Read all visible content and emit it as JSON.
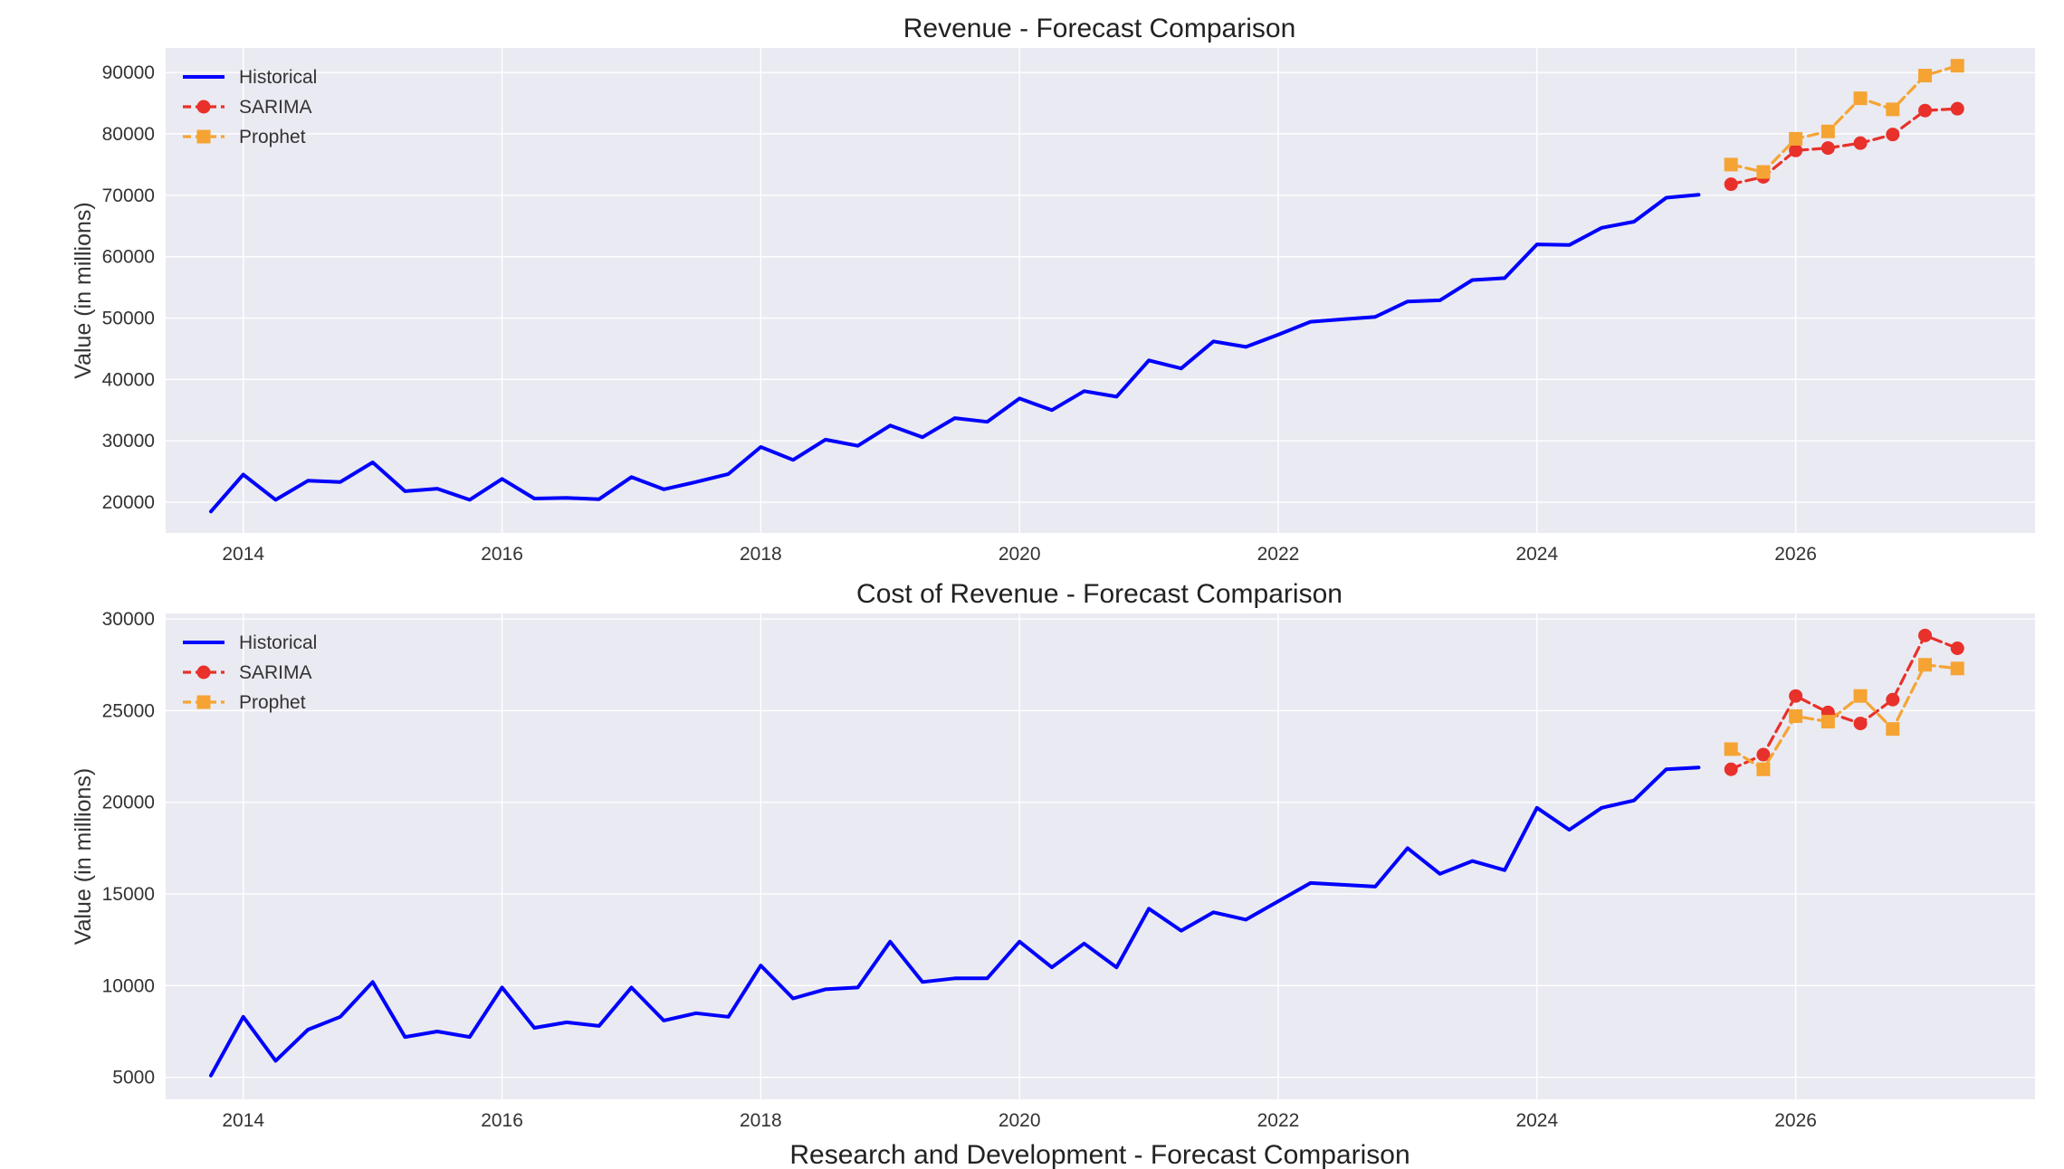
{
  "chart_data": [
    {
      "type": "line",
      "title": "Revenue - Forecast Comparison",
      "xlabel": "",
      "ylabel": "Value (in millions)",
      "xlim": [
        2013.4,
        2027.85
      ],
      "ylim": [
        15000,
        94000
      ],
      "xticks": [
        "2014",
        "2016",
        "2018",
        "2020",
        "2022",
        "2024",
        "2026"
      ],
      "yticks": [
        "20000",
        "30000",
        "40000",
        "50000",
        "60000",
        "70000",
        "80000",
        "90000"
      ],
      "grid": true,
      "legend_position": "top-left",
      "series": [
        {
          "name": "Historical",
          "color": "#0000ff",
          "style": "solid",
          "marker": "none",
          "x": [
            2013.75,
            2014.0,
            2014.25,
            2014.5,
            2014.75,
            2015.0,
            2015.25,
            2015.5,
            2015.75,
            2016.0,
            2016.25,
            2016.5,
            2016.75,
            2017.0,
            2017.25,
            2017.5,
            2017.75,
            2018.0,
            2018.25,
            2018.5,
            2018.75,
            2019.0,
            2019.25,
            2019.5,
            2019.75,
            2020.0,
            2020.25,
            2020.5,
            2020.75,
            2021.0,
            2021.25,
            2021.5,
            2021.75,
            2022.0,
            2022.25,
            2022.5,
            2022.75,
            2023.0,
            2023.25,
            2023.5,
            2023.75,
            2024.0,
            2024.25,
            2024.5,
            2024.75,
            2025.0,
            2025.25
          ],
          "y": [
            18500,
            24500,
            20400,
            23500,
            23300,
            26500,
            21800,
            22200,
            20400,
            23800,
            20600,
            20700,
            20500,
            24100,
            22100,
            23300,
            24600,
            29000,
            26900,
            30200,
            29200,
            32500,
            30600,
            33700,
            33100,
            36900,
            35000,
            38100,
            37200,
            43100,
            41800,
            46200,
            45300,
            47300,
            49400,
            49800,
            50200,
            52700,
            52900,
            56200,
            56500,
            62000,
            61900,
            64700,
            65700,
            69600,
            70100
          ]
        },
        {
          "name": "SARIMA",
          "color": "#e8312a",
          "style": "dashed",
          "marker": "circle",
          "x": [
            2025.5,
            2025.75,
            2026.0,
            2026.25,
            2026.5,
            2026.75,
            2027.0,
            2027.25
          ],
          "y": [
            71800,
            73000,
            77300,
            77700,
            78500,
            79900,
            83800,
            84100
          ]
        },
        {
          "name": "Prophet",
          "color": "#f5a433",
          "style": "dashed",
          "marker": "square",
          "x": [
            2025.5,
            2025.75,
            2026.0,
            2026.25,
            2026.5,
            2026.75,
            2027.0,
            2027.25
          ],
          "y": [
            75000,
            73800,
            79200,
            80400,
            85800,
            84000,
            89500,
            91100
          ]
        }
      ]
    },
    {
      "type": "line",
      "title": "Cost of Revenue - Forecast Comparison",
      "xlabel": "",
      "ylabel": "Value (in millions)",
      "xlim": [
        2013.4,
        2027.85
      ],
      "ylim": [
        3800,
        30300
      ],
      "xticks": [
        "2014",
        "2016",
        "2018",
        "2020",
        "2022",
        "2024",
        "2026"
      ],
      "yticks": [
        "5000",
        "10000",
        "15000",
        "20000",
        "25000",
        "30000"
      ],
      "grid": true,
      "legend_position": "top-left",
      "series": [
        {
          "name": "Historical",
          "color": "#0000ff",
          "style": "solid",
          "marker": "none",
          "x": [
            2013.75,
            2014.0,
            2014.25,
            2014.5,
            2014.75,
            2015.0,
            2015.25,
            2015.5,
            2015.75,
            2016.0,
            2016.25,
            2016.5,
            2016.75,
            2017.0,
            2017.25,
            2017.5,
            2017.75,
            2018.0,
            2018.25,
            2018.5,
            2018.75,
            2019.0,
            2019.25,
            2019.5,
            2019.75,
            2020.0,
            2020.25,
            2020.5,
            2020.75,
            2021.0,
            2021.25,
            2021.5,
            2021.75,
            2022.0,
            2022.25,
            2022.5,
            2022.75,
            2023.0,
            2023.25,
            2023.5,
            2023.75,
            2024.0,
            2024.25,
            2024.5,
            2024.75,
            2025.0,
            2025.25
          ],
          "y": [
            5100,
            8300,
            5900,
            7600,
            8300,
            10200,
            7200,
            7500,
            7200,
            9900,
            7700,
            8000,
            7800,
            9900,
            8100,
            8500,
            8300,
            11100,
            9300,
            9800,
            9900,
            12400,
            10200,
            10400,
            10400,
            12400,
            11000,
            12300,
            11000,
            14200,
            13000,
            14000,
            13600,
            14600,
            15600,
            15500,
            15400,
            17500,
            16100,
            16800,
            16300,
            19700,
            18500,
            19700,
            20100,
            21800,
            21900
          ]
        },
        {
          "name": "SARIMA",
          "color": "#e8312a",
          "style": "dashed",
          "marker": "circle",
          "x": [
            2025.5,
            2025.75,
            2026.0,
            2026.25,
            2026.5,
            2026.75,
            2027.0,
            2027.25
          ],
          "y": [
            21800,
            22600,
            25800,
            24900,
            24300,
            25600,
            29100,
            28400
          ]
        },
        {
          "name": "Prophet",
          "color": "#f5a433",
          "style": "dashed",
          "marker": "square",
          "x": [
            2025.5,
            2025.75,
            2026.0,
            2026.25,
            2026.5,
            2026.75,
            2027.0,
            2027.25
          ],
          "y": [
            22900,
            21800,
            24700,
            24400,
            25800,
            24000,
            27500,
            27300
          ]
        }
      ]
    }
  ],
  "extra_title": "Research and Development - Forecast Comparison"
}
